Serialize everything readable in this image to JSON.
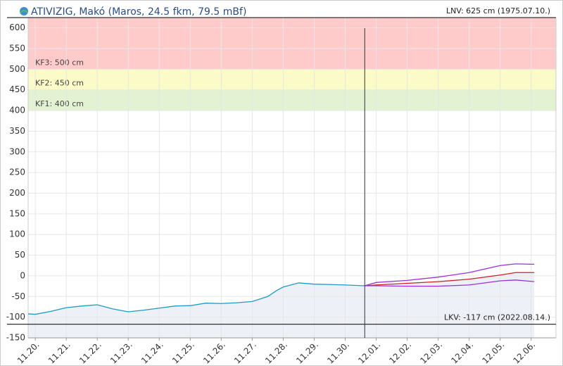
{
  "chart_data": {
    "type": "line",
    "title": "ATIVIZIG, Makó (Maros, 24.5 fkm, 79.5 mBf)",
    "xlim": [
      -0.23,
      16.8
    ],
    "xticks": [
      {
        "value": 0,
        "label": "11.20."
      },
      {
        "value": 1,
        "label": "11.21."
      },
      {
        "value": 2,
        "label": "11.22."
      },
      {
        "value": 3,
        "label": "11.23."
      },
      {
        "value": 4,
        "label": "11.24."
      },
      {
        "value": 5,
        "label": "11.25."
      },
      {
        "value": 6,
        "label": "11.26."
      },
      {
        "value": 7,
        "label": "11.27."
      },
      {
        "value": 8,
        "label": "11.28."
      },
      {
        "value": 9,
        "label": "11.29."
      },
      {
        "value": 10,
        "label": "11.30."
      },
      {
        "value": 11,
        "label": "12.01."
      },
      {
        "value": 12,
        "label": "12.02."
      },
      {
        "value": 13,
        "label": "12.03."
      },
      {
        "value": 14,
        "label": "12.04."
      },
      {
        "value": 15,
        "label": "12.05."
      },
      {
        "value": 16,
        "label": "12.06."
      }
    ],
    "ylim": [
      -150,
      625
    ],
    "yticks": [
      -150,
      -100,
      -50,
      0,
      50,
      100,
      150,
      200,
      250,
      300,
      350,
      400,
      450,
      500,
      550,
      600
    ],
    "grid": true,
    "bands": [
      {
        "label": "KF1: 400 cm",
        "value": 400,
        "color": "#e3f2d3"
      },
      {
        "label": "KF2: 450 cm",
        "value": 450,
        "color": "#fbfbc8"
      },
      {
        "label": "KF3: 500 cm",
        "value": 500,
        "color": "#ffcaca"
      }
    ],
    "reference_lines": [
      {
        "label": "LNV: 625 cm (1975.07.10.)",
        "value": 625
      },
      {
        "label": "LKV: -117 cm (2022.08.14.)",
        "value": -117
      }
    ],
    "now_x": 10.63,
    "series": [
      {
        "color": "#1a9cc4",
        "fill": "#eef0f7",
        "x": [
          -0.23,
          0,
          0.5,
          1,
          1.5,
          2,
          2.5,
          3,
          3.5,
          4,
          4.5,
          5,
          5.5,
          6,
          6.5,
          7,
          7.5,
          7.8,
          8,
          8.5,
          9,
          9.5,
          10,
          10.63
        ],
        "values": [
          -92,
          -93,
          -86,
          -77,
          -73,
          -70,
          -80,
          -87,
          -83,
          -78,
          -73,
          -72,
          -66,
          -67,
          -65,
          -62,
          -50,
          -35,
          -27,
          -17,
          -20,
          -21,
          -22,
          -24
        ]
      },
      {
        "color": "#cc2222",
        "x": [
          10.63,
          11,
          12,
          13,
          14,
          15,
          15.5,
          16.1
        ],
        "values": [
          -24,
          -22,
          -18,
          -14,
          -8,
          2,
          8,
          8
        ]
      },
      {
        "color": "#9b30d9",
        "x": [
          10.63,
          11,
          12,
          13,
          14,
          15,
          15.5,
          16.1
        ],
        "values": [
          -24,
          -16,
          -11,
          -3,
          8,
          25,
          29,
          28
        ]
      },
      {
        "color": "#9b30d9",
        "x": [
          10.63,
          11,
          12,
          13,
          14,
          15,
          15.5,
          16.1
        ],
        "values": [
          -24,
          -24,
          -25,
          -25,
          -22,
          -12,
          -10,
          -14
        ]
      }
    ]
  }
}
